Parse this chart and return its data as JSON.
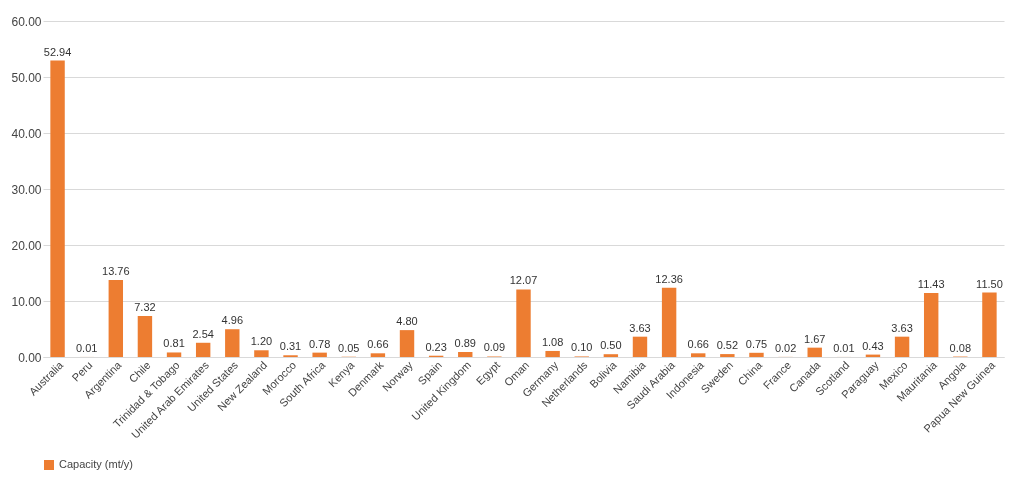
{
  "chart_data": {
    "type": "bar",
    "categories": [
      "Australia",
      "Peru",
      "Argentina",
      "Chile",
      "Trinidad & Tobago",
      "United Arab Emirates",
      "United States",
      "New Zealand",
      "Morocco",
      "South Africa",
      "Kenya",
      "Denmark",
      "Norway",
      "Spain",
      "United Kingdom",
      "Egypt",
      "Oman",
      "Germany",
      "Netherlands",
      "Bolivia",
      "Namibia",
      "Saudi Arabia",
      "Indonesia",
      "Sweden",
      "China",
      "France",
      "Canada",
      "Scotland",
      "Paraguay",
      "Mexico",
      "Mauritania",
      "Angola",
      "Papua New Guinea"
    ],
    "series": [
      {
        "name": "Capacity (mt/y)",
        "color": "#ed7d31",
        "values": [
          52.94,
          0.01,
          13.76,
          7.32,
          0.81,
          2.54,
          4.96,
          1.2,
          0.31,
          0.78,
          0.05,
          0.66,
          4.8,
          0.23,
          0.89,
          0.09,
          12.07,
          1.08,
          0.1,
          0.5,
          3.63,
          12.36,
          0.66,
          0.52,
          0.75,
          0.02,
          1.67,
          0.01,
          0.43,
          3.63,
          11.43,
          0.08,
          11.5
        ],
        "value_labels": [
          "52.94",
          "0.01",
          "13.76",
          "7.32",
          "0.81",
          "2.54",
          "4.96",
          "1.20",
          "0.31",
          "0.78",
          "0.05",
          "0.66",
          "4.80",
          "0.23",
          "0.89",
          "0.09",
          "12.07",
          "1.08",
          "0.10",
          "0.50",
          "3.63",
          "12.36",
          "0.66",
          "0.52",
          "0.75",
          "0.02",
          "1.67",
          "0.01",
          "0.43",
          "3.63",
          "11.43",
          "0.08",
          "11.50"
        ]
      }
    ],
    "ylim": [
      0,
      60
    ],
    "yticks": [
      {
        "value": 0,
        "label": "0.00"
      },
      {
        "value": 10,
        "label": "10.00"
      },
      {
        "value": 20,
        "label": "20.00"
      },
      {
        "value": 30,
        "label": "30.00"
      },
      {
        "value": 40,
        "label": "40.00"
      },
      {
        "value": 50,
        "label": "50.00"
      },
      {
        "value": 60,
        "label": "60.00"
      }
    ],
    "grid": "y",
    "legend": "bottom"
  }
}
